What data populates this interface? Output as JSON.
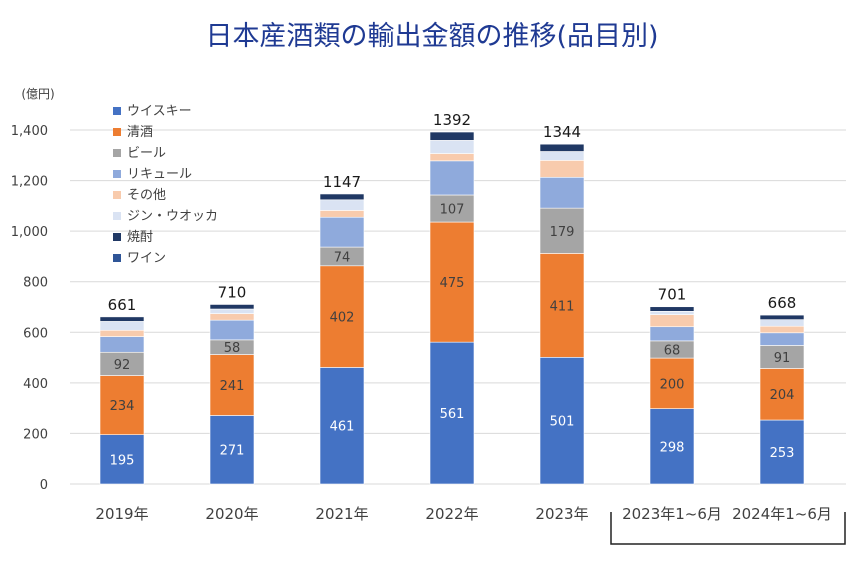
{
  "chart_data": {
    "type": "bar",
    "stacked": true,
    "title": "日本産酒類の輸出金額の推移(品目別)",
    "ylabel": "(億円)",
    "ylim": [
      0,
      1400
    ],
    "yticks": [
      "0",
      "200",
      "400",
      "600",
      "800",
      "1,000",
      "1,200",
      "1,400"
    ],
    "grid": true,
    "legend_position": "top-left",
    "categories": [
      "2019年",
      "2020年",
      "2021年",
      "2022年",
      "2023年",
      "2023年1~6月",
      "2024年1~6月"
    ],
    "totals": [
      "661",
      "710",
      "1147",
      "1392",
      "1344",
      "701",
      "668"
    ],
    "series": [
      {
        "name": "ウイスキー",
        "color": "#4472c4",
        "values": [
          195,
          271,
          461,
          561,
          501,
          298,
          253
        ],
        "labels": [
          "195",
          "271",
          "461",
          "561",
          "501",
          "298",
          "253"
        ]
      },
      {
        "name": "清酒",
        "color": "#ed7d31",
        "values": [
          234,
          241,
          402,
          475,
          411,
          200,
          204
        ],
        "labels": [
          "234",
          "241",
          "402",
          "475",
          "411",
          "200",
          "204"
        ]
      },
      {
        "name": "ビール",
        "color": "#a5a5a5",
        "values": [
          92,
          58,
          74,
          107,
          179,
          68,
          91
        ],
        "labels": [
          "92",
          "58",
          "74",
          "107",
          "179",
          "68",
          "91"
        ]
      },
      {
        "name": "リキュール",
        "color": "#8faadc",
        "values": [
          62,
          78,
          118,
          135,
          122,
          56,
          50
        ],
        "labels": []
      },
      {
        "name": "その他",
        "color": "#f8cbad",
        "values": [
          25,
          26,
          27,
          29,
          67,
          48,
          26
        ],
        "labels": []
      },
      {
        "name": "ジン・ウオッカ",
        "color": "#dae3f3",
        "values": [
          35,
          18,
          42,
          52,
          35,
          13,
          26
        ],
        "labels": []
      },
      {
        "name": "焼酎",
        "color": "#203864",
        "values": [
          18,
          18,
          23,
          33,
          29,
          18,
          18
        ],
        "labels": []
      },
      {
        "name": "ワイン",
        "color": "#2f5597",
        "values": [
          0,
          0,
          0,
          0,
          0,
          0,
          0
        ],
        "labels": []
      }
    ]
  }
}
